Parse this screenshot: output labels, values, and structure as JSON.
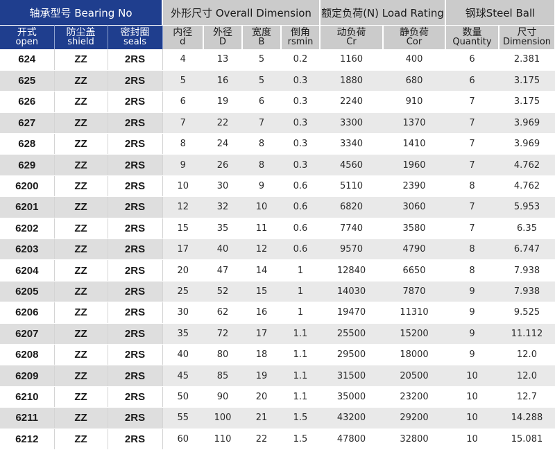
{
  "header": {
    "groups": {
      "bearing_no": "轴承型号 Bearing No",
      "overall_dimension": "外形尺寸 Overall Dimension",
      "load_rating": "额定负荷(N) Load Rating",
      "steel_ball": "钢球Steel Ball"
    },
    "columns": [
      {
        "cn": "开式",
        "en": "open"
      },
      {
        "cn": "防尘盖",
        "en": "shield"
      },
      {
        "cn": "密封圈",
        "en": "seals"
      },
      {
        "cn": "内径",
        "en": "d"
      },
      {
        "cn": "外径",
        "en": "D"
      },
      {
        "cn": "宽度",
        "en": "B"
      },
      {
        "cn": "倒角",
        "en": "rsmin"
      },
      {
        "cn": "动负荷",
        "en": "Cr"
      },
      {
        "cn": "静负荷",
        "en": "Cor"
      },
      {
        "cn": "数量",
        "en": "Quantity"
      },
      {
        "cn": "尺寸",
        "en": "Dimension"
      }
    ]
  },
  "rows": [
    [
      "624",
      "ZZ",
      "2RS",
      "4",
      "13",
      "5",
      "0.2",
      "1160",
      "400",
      "6",
      "2.381"
    ],
    [
      "625",
      "ZZ",
      "2RS",
      "5",
      "16",
      "5",
      "0.3",
      "1880",
      "680",
      "6",
      "3.175"
    ],
    [
      "626",
      "ZZ",
      "2RS",
      "6",
      "19",
      "6",
      "0.3",
      "2240",
      "910",
      "7",
      "3.175"
    ],
    [
      "627",
      "ZZ",
      "2RS",
      "7",
      "22",
      "7",
      "0.3",
      "3300",
      "1370",
      "7",
      "3.969"
    ],
    [
      "628",
      "ZZ",
      "2RS",
      "8",
      "24",
      "8",
      "0.3",
      "3340",
      "1410",
      "7",
      "3.969"
    ],
    [
      "629",
      "ZZ",
      "2RS",
      "9",
      "26",
      "8",
      "0.3",
      "4560",
      "1960",
      "7",
      "4.762"
    ],
    [
      "6200",
      "ZZ",
      "2RS",
      "10",
      "30",
      "9",
      "0.6",
      "5110",
      "2390",
      "8",
      "4.762"
    ],
    [
      "6201",
      "ZZ",
      "2RS",
      "12",
      "32",
      "10",
      "0.6",
      "6820",
      "3060",
      "7",
      "5.953"
    ],
    [
      "6202",
      "ZZ",
      "2RS",
      "15",
      "35",
      "11",
      "0.6",
      "7740",
      "3580",
      "7",
      "6.35"
    ],
    [
      "6203",
      "ZZ",
      "2RS",
      "17",
      "40",
      "12",
      "0.6",
      "9570",
      "4790",
      "8",
      "6.747"
    ],
    [
      "6204",
      "ZZ",
      "2RS",
      "20",
      "47",
      "14",
      "1",
      "12840",
      "6650",
      "8",
      "7.938"
    ],
    [
      "6205",
      "ZZ",
      "2RS",
      "25",
      "52",
      "15",
      "1",
      "14030",
      "7870",
      "9",
      "7.938"
    ],
    [
      "6206",
      "ZZ",
      "2RS",
      "30",
      "62",
      "16",
      "1",
      "19470",
      "11310",
      "9",
      "9.525"
    ],
    [
      "6207",
      "ZZ",
      "2RS",
      "35",
      "72",
      "17",
      "1.1",
      "25500",
      "15200",
      "9",
      "11.112"
    ],
    [
      "6208",
      "ZZ",
      "2RS",
      "40",
      "80",
      "18",
      "1.1",
      "29500",
      "18000",
      "9",
      "12.0"
    ],
    [
      "6209",
      "ZZ",
      "2RS",
      "45",
      "85",
      "19",
      "1.1",
      "31500",
      "20500",
      "10",
      "12.0"
    ],
    [
      "6210",
      "ZZ",
      "2RS",
      "50",
      "90",
      "20",
      "1.1",
      "35000",
      "23200",
      "10",
      "12.7"
    ],
    [
      "6211",
      "ZZ",
      "2RS",
      "55",
      "100",
      "21",
      "1.5",
      "43200",
      "29200",
      "10",
      "14.288"
    ],
    [
      "6212",
      "ZZ",
      "2RS",
      "60",
      "110",
      "22",
      "1.5",
      "47800",
      "32800",
      "10",
      "15.081"
    ]
  ]
}
